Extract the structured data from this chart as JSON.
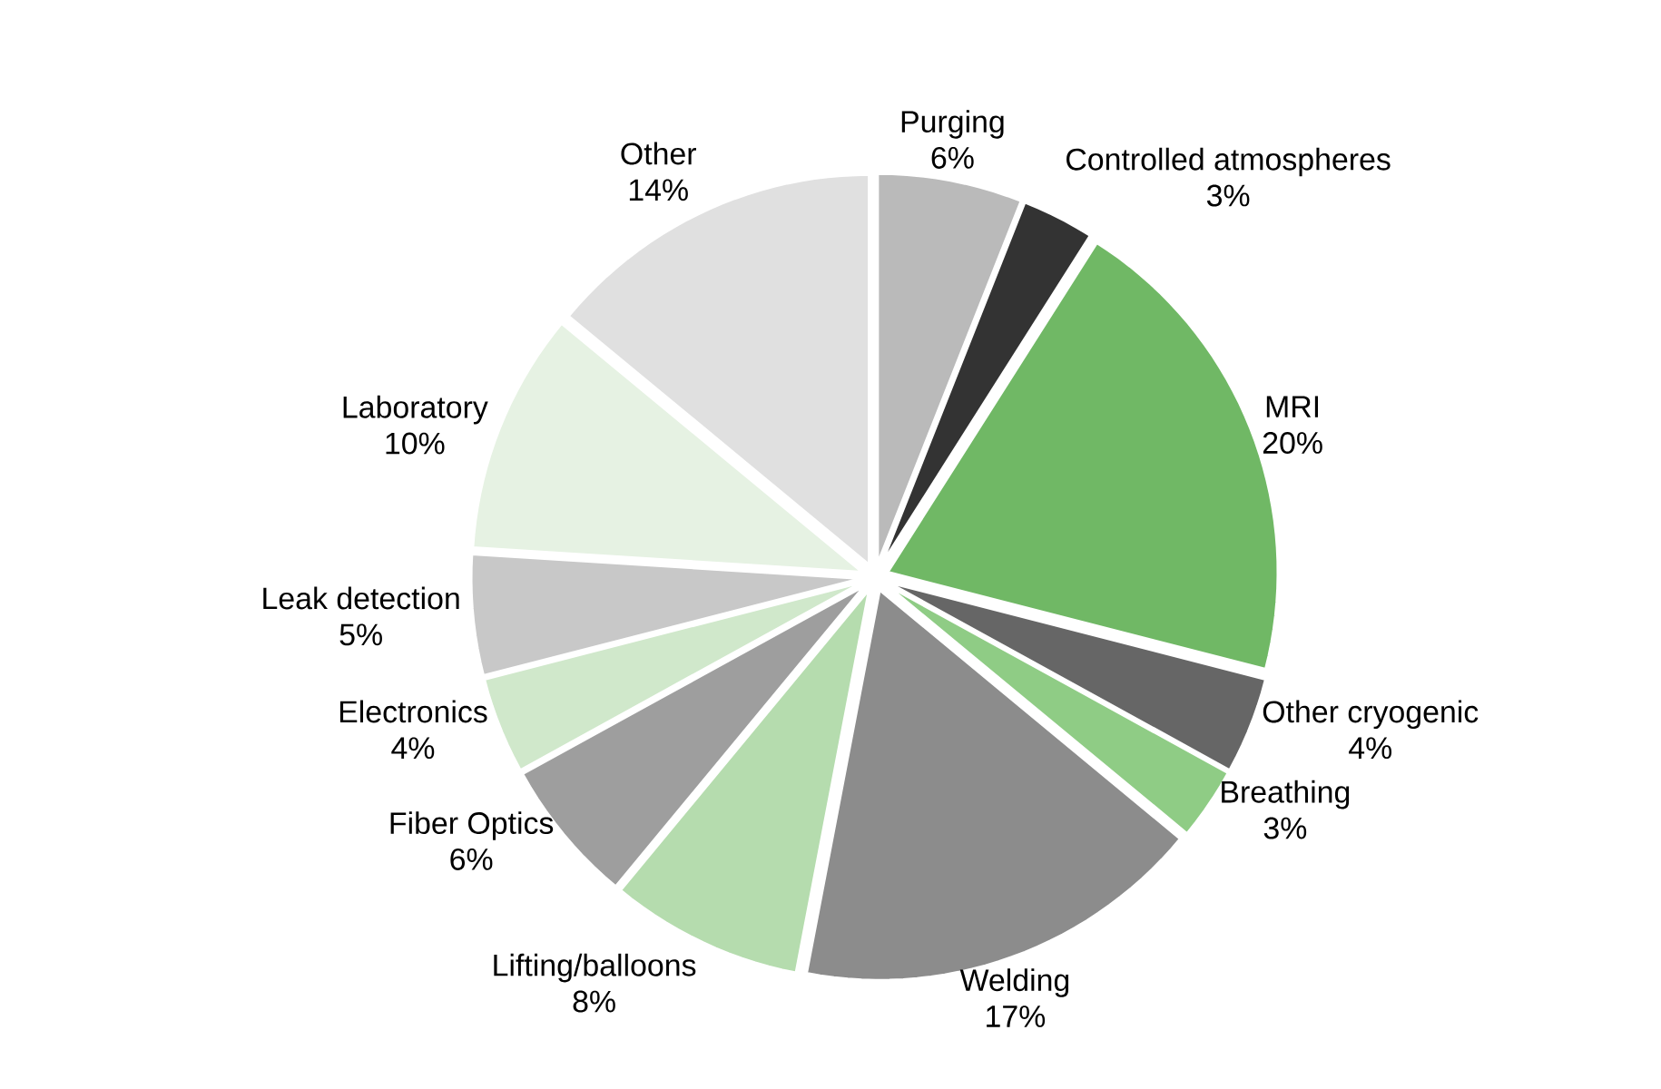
{
  "chart_data": {
    "type": "pie",
    "categories": [
      "Purging",
      "Controlled atmospheres",
      "MRI",
      "Other cryogenic",
      "Breathing",
      "Welding",
      "Lifting/balloons",
      "Fiber Optics",
      "Electronics",
      "Leak detection",
      "Laboratory",
      "Other"
    ],
    "values": [
      6,
      3,
      20,
      4,
      3,
      17,
      8,
      6,
      4,
      5,
      10,
      14
    ],
    "value_labels": [
      "6%",
      "3%",
      "20%",
      "4%",
      "3%",
      "17%",
      "8%",
      "6%",
      "4%",
      "5%",
      "10%",
      "14%"
    ],
    "colors": [
      "#bababa",
      "#333333",
      "#70b865",
      "#666666",
      "#8fcc85",
      "#8c8c8c",
      "#b5dcae",
      "#9e9e9e",
      "#d0e8cb",
      "#c8c8c8",
      "#e6f2e3",
      "#e0e0e0"
    ]
  }
}
